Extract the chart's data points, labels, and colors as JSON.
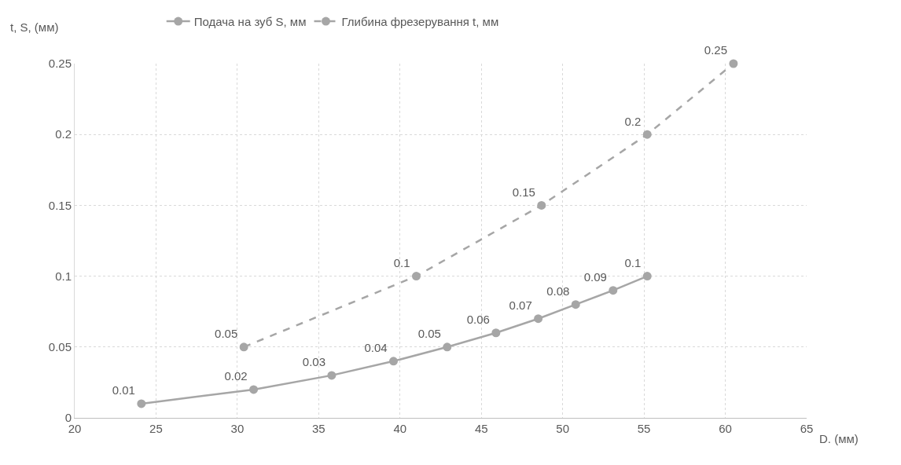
{
  "chart_data": {
    "type": "line",
    "xlabel": "D. (мм)",
    "ylabel": "t, S, (мм)",
    "xlim": [
      20,
      65
    ],
    "xticks": [
      20,
      25,
      30,
      35,
      40,
      45,
      50,
      55,
      60,
      65
    ],
    "ylim": [
      0,
      0.25
    ],
    "yticks": [
      0,
      0.05,
      0.1,
      0.15,
      0.2,
      0.25
    ],
    "grid": true,
    "legend": "top",
    "marker": "circle",
    "data_labels": true,
    "series": [
      {
        "name": "Подача на зуб S, мм",
        "color": "#a6a6a6",
        "line_style": "solid",
        "x": [
          24.1,
          31.0,
          35.8,
          39.6,
          42.9,
          45.9,
          48.5,
          50.8,
          53.1,
          55.2
        ],
        "values": [
          0.01,
          0.02,
          0.03,
          0.04,
          0.05,
          0.06,
          0.07,
          0.08,
          0.09,
          0.1
        ]
      },
      {
        "name": "Глибина фрезерування t, мм",
        "color": "#a6a6a6",
        "line_style": "dashed",
        "x": [
          30.4,
          41.0,
          48.7,
          55.2,
          60.5
        ],
        "values": [
          0.05,
          0.1,
          0.15,
          0.2,
          0.25
        ]
      }
    ]
  }
}
